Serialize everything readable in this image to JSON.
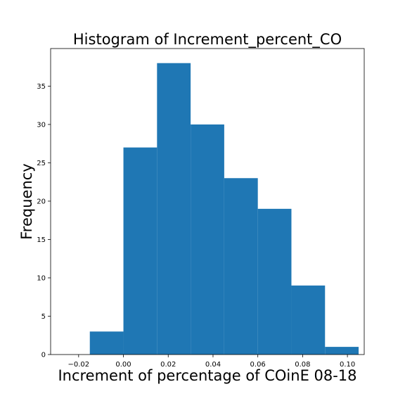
{
  "chart_data": {
    "type": "bar",
    "title": "Histogram of Increment_percent_CO",
    "xlabel": "Increment of percentage of COinE 08-18",
    "ylabel": "Frequency",
    "bins": [
      {
        "start": -0.015,
        "end": 0.0,
        "count": 3
      },
      {
        "start": 0.0,
        "end": 0.015,
        "count": 27
      },
      {
        "start": 0.015,
        "end": 0.03,
        "count": 38
      },
      {
        "start": 0.03,
        "end": 0.045,
        "count": 30
      },
      {
        "start": 0.045,
        "end": 0.06,
        "count": 23
      },
      {
        "start": 0.06,
        "end": 0.075,
        "count": 19
      },
      {
        "start": 0.075,
        "end": 0.09,
        "count": 9
      },
      {
        "start": 0.09,
        "end": 0.105,
        "count": 1
      }
    ],
    "xlim": [
      -0.0325,
      0.1075
    ],
    "ylim": [
      0,
      39.9
    ],
    "xticks": [
      -0.02,
      0.0,
      0.02,
      0.04,
      0.06,
      0.08,
      0.1
    ],
    "xtick_labels": [
      "−0.02",
      "0.00",
      "0.02",
      "0.04",
      "0.06",
      "0.08",
      "0.10"
    ],
    "yticks": [
      0,
      5,
      10,
      15,
      20,
      25,
      30,
      35
    ],
    "ytick_labels": [
      "0",
      "5",
      "10",
      "15",
      "20",
      "25",
      "30",
      "35"
    ],
    "bar_color": "#1f77b4",
    "grid": false,
    "legend": "none"
  }
}
